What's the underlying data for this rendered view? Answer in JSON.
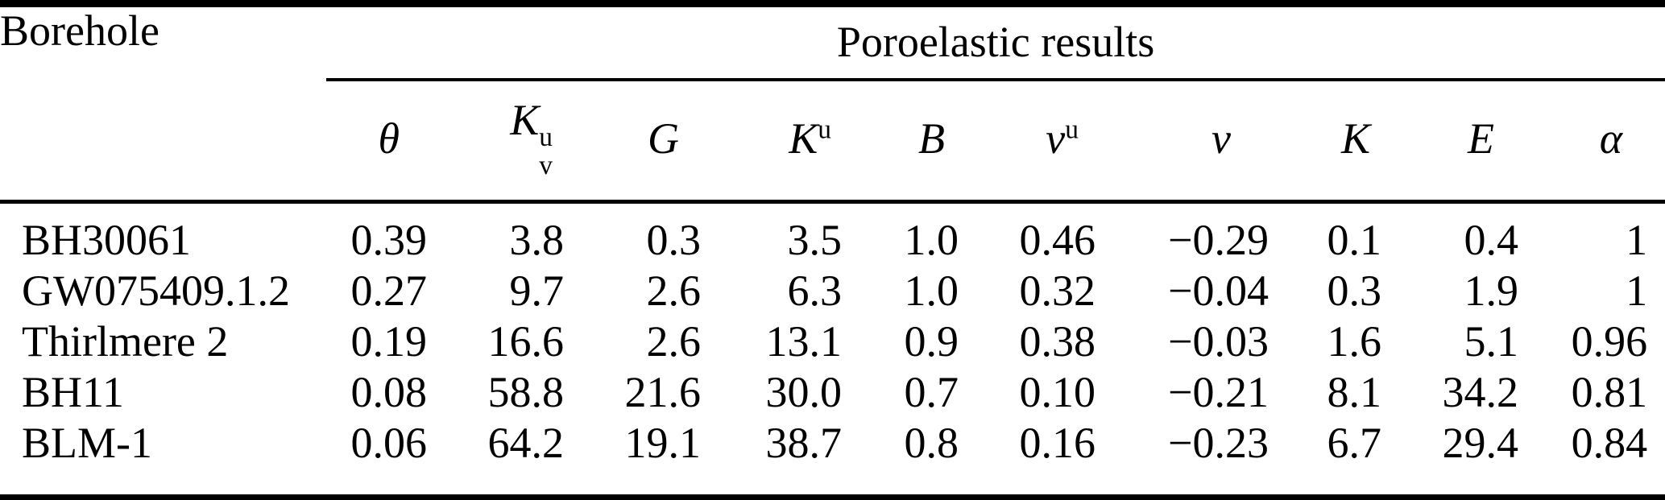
{
  "table": {
    "row_header_label": "Borehole",
    "group_header_label": "Poroelastic results",
    "columns": [
      {
        "name": "theta",
        "base": "θ",
        "sup": "",
        "sub": ""
      },
      {
        "name": "K-v-u",
        "base": "K",
        "sup": "u",
        "sub": "v"
      },
      {
        "name": "G",
        "base": "G",
        "sup": "",
        "sub": ""
      },
      {
        "name": "K-u",
        "base": "K",
        "sup": "u",
        "sub": ""
      },
      {
        "name": "B",
        "base": "B",
        "sup": "",
        "sub": ""
      },
      {
        "name": "nu-u",
        "base": "ν",
        "sup": "u",
        "sub": ""
      },
      {
        "name": "nu",
        "base": "ν",
        "sup": "",
        "sub": ""
      },
      {
        "name": "K",
        "base": "K",
        "sup": "",
        "sub": ""
      },
      {
        "name": "E",
        "base": "E",
        "sup": "",
        "sub": ""
      },
      {
        "name": "alpha",
        "base": "α",
        "sup": "",
        "sub": ""
      }
    ],
    "rows": [
      {
        "borehole": "BH30061",
        "values": [
          "0.39",
          "3.8",
          "0.3",
          "3.5",
          "1.0",
          "0.46",
          "−0.29",
          "0.1",
          "0.4",
          "1"
        ]
      },
      {
        "borehole": "GW075409.1.2",
        "values": [
          "0.27",
          "9.7",
          "2.6",
          "6.3",
          "1.0",
          "0.32",
          "−0.04",
          "0.3",
          "1.9",
          "1"
        ]
      },
      {
        "borehole": "Thirlmere 2",
        "values": [
          "0.19",
          "16.6",
          "2.6",
          "13.1",
          "0.9",
          "0.38",
          "−0.03",
          "1.6",
          "5.1",
          "0.96"
        ]
      },
      {
        "borehole": "BH11",
        "values": [
          "0.08",
          "58.8",
          "21.6",
          "30.0",
          "0.7",
          "0.10",
          "−0.21",
          "8.1",
          "34.2",
          "0.81"
        ]
      },
      {
        "borehole": "BLM-1",
        "values": [
          "0.06",
          "64.2",
          "19.1",
          "38.7",
          "0.8",
          "0.16",
          "−0.23",
          "6.7",
          "29.4",
          "0.84"
        ]
      }
    ]
  }
}
